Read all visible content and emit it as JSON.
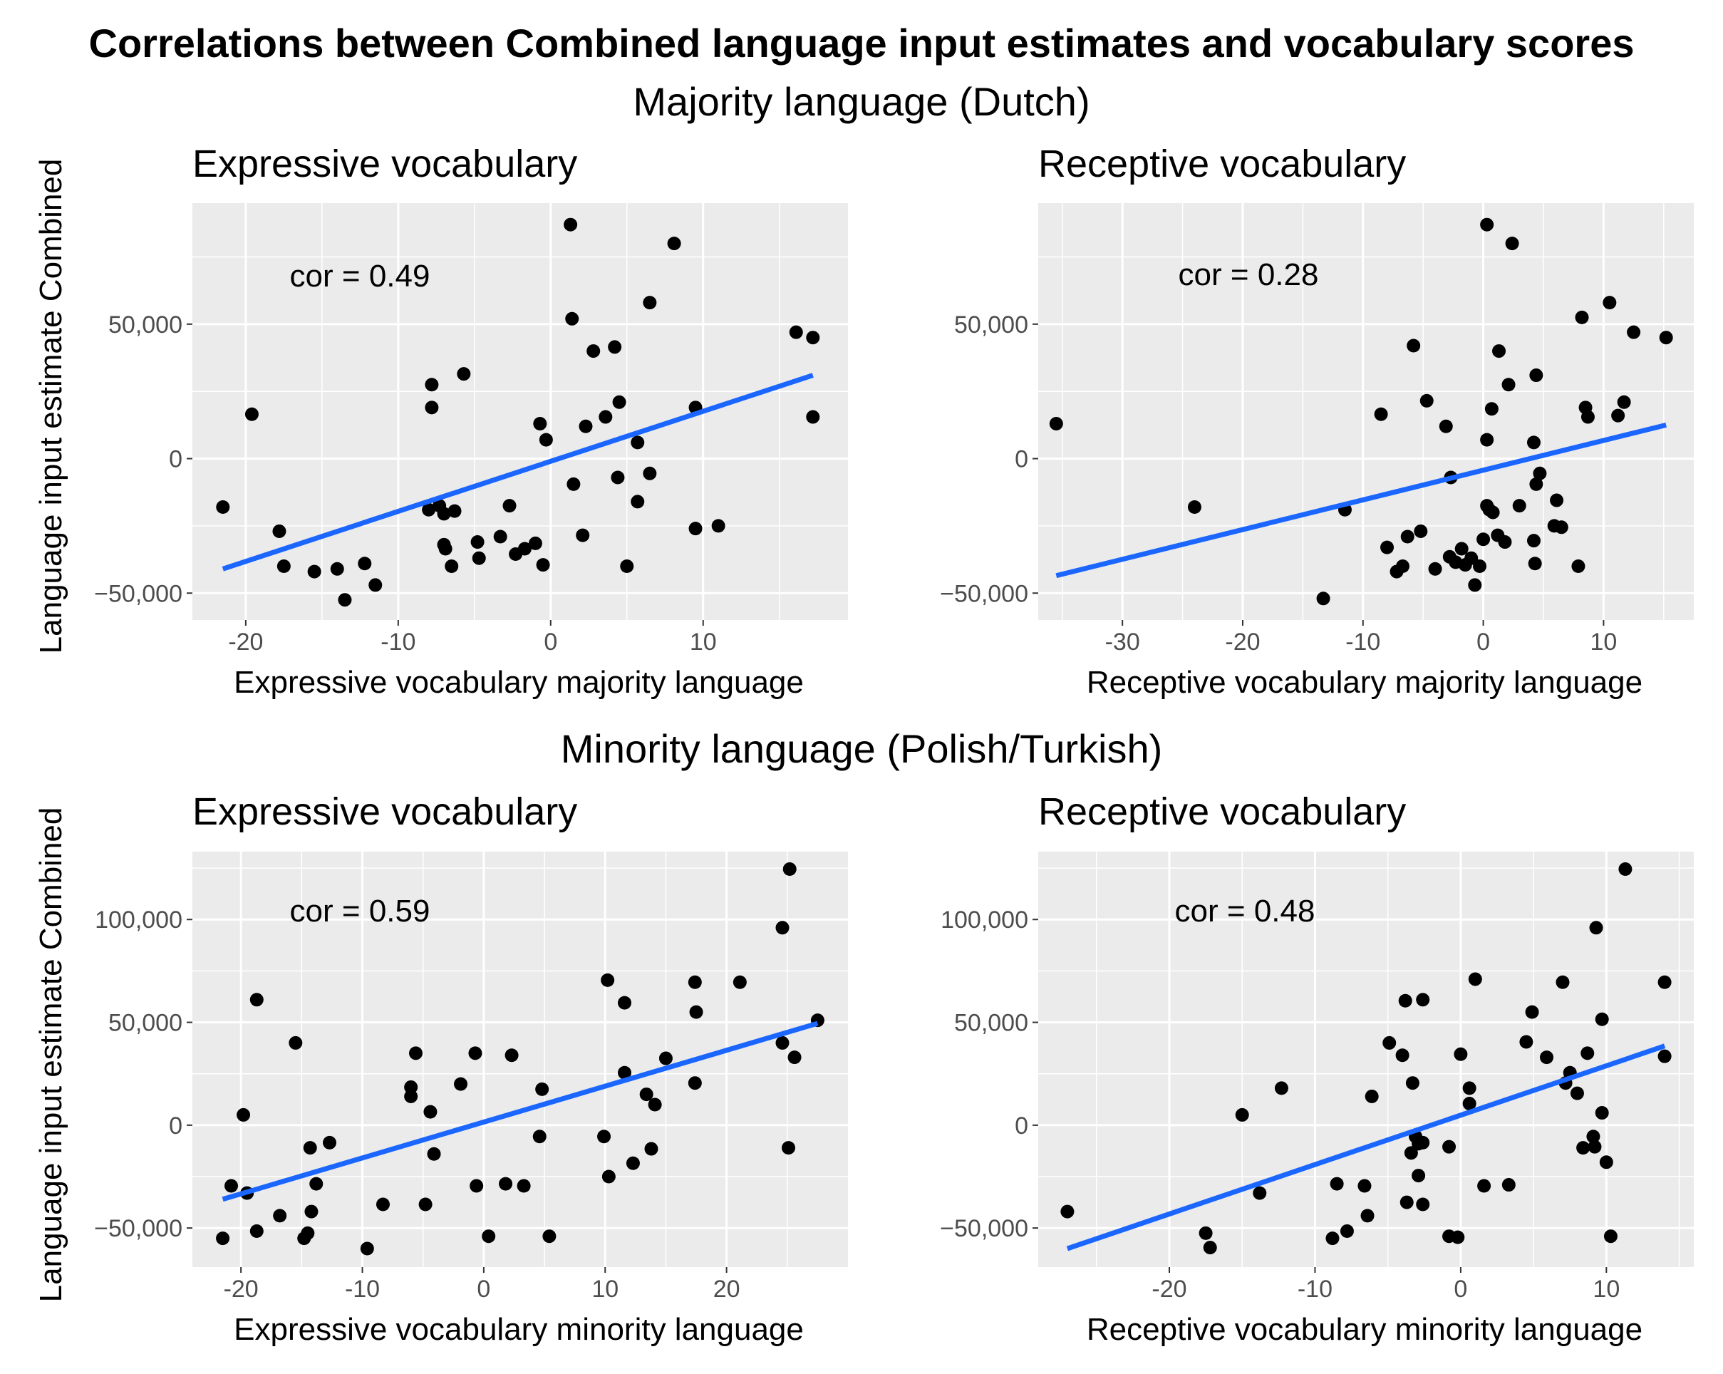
{
  "title": "Correlations between Combined language input estimates and vocabulary scores",
  "sections": [
    {
      "label": "Majority language (Dutch)"
    },
    {
      "label": "Minority language (Polish/Turkish)"
    }
  ],
  "colors": {
    "panel_bg": "#ebebeb",
    "grid": "#ffffff",
    "point": "#000000",
    "fit_line": "#1a66ff",
    "tick_text": "#4d4d4d"
  },
  "chart_data": [
    {
      "type": "scatter",
      "title": "Expressive vocabulary",
      "xlabel": "Expressive vocabulary majority language",
      "ylabel": "Language input estimate Combined",
      "annotation": "cor = 0.49",
      "xlim": [
        -23.5,
        19.5
      ],
      "ylim": [
        -60000,
        95000
      ],
      "xticks": [
        -20,
        -10,
        0,
        10
      ],
      "xtick_labels": [
        "-20",
        "-10",
        "0",
        "10"
      ],
      "yticks": [
        -50000,
        0,
        50000
      ],
      "ytick_labels": [
        "−50,000",
        "0",
        "50,000"
      ],
      "fit": {
        "x": [
          -21.5,
          17.2
        ],
        "y": [
          -41000,
          31000
        ]
      },
      "points": [
        [
          -21.5,
          -18000
        ],
        [
          -19.6,
          16500
        ],
        [
          -17.8,
          -27000
        ],
        [
          -17.5,
          -40000
        ],
        [
          -15.5,
          -42000
        ],
        [
          -14,
          -41000
        ],
        [
          -13.5,
          -52500
        ],
        [
          -12.2,
          -39000
        ],
        [
          -11.5,
          -47000
        ],
        [
          -8,
          -19000
        ],
        [
          -7.8,
          27500
        ],
        [
          -7.8,
          19000
        ],
        [
          -7.3,
          -17500
        ],
        [
          -7,
          -20500
        ],
        [
          -7,
          -32000
        ],
        [
          -6.9,
          -33500
        ],
        [
          -6.5,
          -40000
        ],
        [
          -6.3,
          -19500
        ],
        [
          -5.7,
          31500
        ],
        [
          -4.8,
          -31000
        ],
        [
          -4.7,
          -37000
        ],
        [
          -3.3,
          -29000
        ],
        [
          -2.7,
          -17500
        ],
        [
          -2.3,
          -35500
        ],
        [
          -1.7,
          -33500
        ],
        [
          -1,
          -31500
        ],
        [
          -0.7,
          13000
        ],
        [
          -0.5,
          -39500
        ],
        [
          -0.3,
          7000
        ],
        [
          1.3,
          87000
        ],
        [
          1.4,
          52000
        ],
        [
          1.5,
          -9500
        ],
        [
          2.1,
          -28500
        ],
        [
          2.3,
          12000
        ],
        [
          2.8,
          40000
        ],
        [
          3.6,
          15500
        ],
        [
          4.2,
          41500
        ],
        [
          4.4,
          -7000
        ],
        [
          4.5,
          21000
        ],
        [
          5,
          -40000
        ],
        [
          5.7,
          -16000
        ],
        [
          5.7,
          6000
        ],
        [
          6.5,
          58000
        ],
        [
          6.5,
          -5500
        ],
        [
          8.1,
          80000
        ],
        [
          9.5,
          19000
        ],
        [
          9.5,
          -26000
        ],
        [
          11,
          -25000
        ],
        [
          16.1,
          47000
        ],
        [
          17.2,
          45000
        ],
        [
          17.2,
          15500
        ]
      ]
    },
    {
      "type": "scatter",
      "title": "Receptive vocabulary",
      "xlabel": "Receptive vocabulary majority language",
      "ylabel": "",
      "annotation": "cor = 0.28",
      "xlim": [
        -37,
        17.5
      ],
      "ylim": [
        -60000,
        95000
      ],
      "xticks": [
        -30,
        -20,
        -10,
        0,
        10
      ],
      "xtick_labels": [
        "-30",
        "-20",
        "-10",
        "0",
        "10"
      ],
      "yticks": [
        -50000,
        0,
        50000
      ],
      "ytick_labels": [
        "−50,000",
        "0",
        "50,000"
      ],
      "fit": {
        "x": [
          -35.5,
          15.2
        ],
        "y": [
          -43500,
          12500
        ]
      },
      "points": [
        [
          -35.5,
          13000
        ],
        [
          -24,
          -18000
        ],
        [
          -13.3,
          -52000
        ],
        [
          -11.5,
          -19000
        ],
        [
          -8.5,
          16500
        ],
        [
          -8,
          -33000
        ],
        [
          -7.2,
          -42000
        ],
        [
          -6.7,
          -40000
        ],
        [
          -6.3,
          -29000
        ],
        [
          -5.8,
          42000
        ],
        [
          -5.2,
          -27000
        ],
        [
          -4.7,
          21500
        ],
        [
          -4,
          -41000
        ],
        [
          -3.1,
          12000
        ],
        [
          -2.8,
          -36500
        ],
        [
          -2.7,
          -7000
        ],
        [
          -2.3,
          -38500
        ],
        [
          -1.8,
          -33500
        ],
        [
          -1.5,
          -39500
        ],
        [
          -1,
          -37000
        ],
        [
          -0.7,
          -47000
        ],
        [
          -0.3,
          -40000
        ],
        [
          0,
          -30000
        ],
        [
          0.3,
          87000
        ],
        [
          0.3,
          -17500
        ],
        [
          0.3,
          7000
        ],
        [
          0.5,
          -19000
        ],
        [
          0.7,
          18500
        ],
        [
          0.8,
          -20000
        ],
        [
          1.2,
          -28500
        ],
        [
          1.3,
          40000
        ],
        [
          1.8,
          -31000
        ],
        [
          2.1,
          27500
        ],
        [
          2.4,
          80000
        ],
        [
          3,
          -17500
        ],
        [
          4.2,
          6000
        ],
        [
          4.2,
          -30500
        ],
        [
          4.3,
          -39000
        ],
        [
          4.4,
          31000
        ],
        [
          4.4,
          -9500
        ],
        [
          4.7,
          -5500
        ],
        [
          5.9,
          -25000
        ],
        [
          6.1,
          -15500
        ],
        [
          6.5,
          -25500
        ],
        [
          7.9,
          -40000
        ],
        [
          8.2,
          52500
        ],
        [
          8.5,
          19000
        ],
        [
          8.7,
          15500
        ],
        [
          10.5,
          58000
        ],
        [
          11.2,
          16000
        ],
        [
          11.7,
          21000
        ],
        [
          12.5,
          47000
        ],
        [
          15.2,
          45000
        ]
      ]
    },
    {
      "type": "scatter",
      "title": "Expressive vocabulary",
      "xlabel": "Expressive vocabulary minority language",
      "ylabel": "Language input estimate Combined",
      "annotation": "cor = 0.59",
      "xlim": [
        -24,
        30
      ],
      "ylim": [
        -69000,
        133000
      ],
      "xticks": [
        -20,
        -10,
        0,
        10,
        20
      ],
      "xtick_labels": [
        "-20",
        "-10",
        "0",
        "10",
        "20"
      ],
      "yticks": [
        -50000,
        0,
        50000,
        100000
      ],
      "ytick_labels": [
        "−50,000",
        "0",
        "50,000",
        "100,000"
      ],
      "fit": {
        "x": [
          -21.5,
          27.5
        ],
        "y": [
          -36000,
          49500
        ]
      },
      "points": [
        [
          -21.5,
          -55000
        ],
        [
          -20.8,
          -29500
        ],
        [
          -19.8,
          5000
        ],
        [
          -19.5,
          -33000
        ],
        [
          -18.7,
          61000
        ],
        [
          -18.7,
          -51500
        ],
        [
          -16.8,
          -44000
        ],
        [
          -15.5,
          40000
        ],
        [
          -14.8,
          -55000
        ],
        [
          -14.5,
          -52500
        ],
        [
          -14.3,
          -11000
        ],
        [
          -14.2,
          -42000
        ],
        [
          -13.8,
          -28500
        ],
        [
          -12.7,
          -8500
        ],
        [
          -9.6,
          -60000
        ],
        [
          -8.3,
          -38500
        ],
        [
          -6,
          14000
        ],
        [
          -6,
          18500
        ],
        [
          -5.6,
          35000
        ],
        [
          -4.8,
          -38500
        ],
        [
          -4.4,
          6500
        ],
        [
          -4.1,
          -14000
        ],
        [
          -1.9,
          20000
        ],
        [
          -0.7,
          35000
        ],
        [
          -0.6,
          -29500
        ],
        [
          0.4,
          -54000
        ],
        [
          1.8,
          -28500
        ],
        [
          2.3,
          34000
        ],
        [
          3.3,
          -29500
        ],
        [
          4.6,
          -5500
        ],
        [
          4.8,
          17500
        ],
        [
          5.4,
          -54000
        ],
        [
          9.9,
          -5500
        ],
        [
          10.2,
          70500
        ],
        [
          10.3,
          -25000
        ],
        [
          11.6,
          59500
        ],
        [
          11.6,
          25500
        ],
        [
          12.3,
          -18500
        ],
        [
          13.4,
          15000
        ],
        [
          13.8,
          -11500
        ],
        [
          14.1,
          10000
        ],
        [
          15,
          32500
        ],
        [
          17.4,
          69500
        ],
        [
          17.4,
          20500
        ],
        [
          17.5,
          55000
        ],
        [
          21.1,
          69500
        ],
        [
          24.6,
          96000
        ],
        [
          24.6,
          40000
        ],
        [
          25.1,
          -11000
        ],
        [
          25.2,
          124500
        ],
        [
          25.6,
          33000
        ],
        [
          27.5,
          51000
        ]
      ]
    },
    {
      "type": "scatter",
      "title": "Receptive vocabulary",
      "xlabel": "Receptive vocabulary minority language",
      "ylabel": "",
      "annotation": "cor = 0.48",
      "xlim": [
        -29,
        16
      ],
      "ylim": [
        -69000,
        133000
      ],
      "xticks": [
        -20,
        -10,
        0,
        10
      ],
      "xtick_labels": [
        "-20",
        "-10",
        "0",
        "10"
      ],
      "yticks": [
        -50000,
        0,
        50000,
        100000
      ],
      "ytick_labels": [
        "−50,000",
        "0",
        "50,000",
        "100,000"
      ],
      "fit": {
        "x": [
          -27,
          14
        ],
        "y": [
          -60000,
          38500
        ]
      },
      "points": [
        [
          -27,
          -42000
        ],
        [
          -17.5,
          -52500
        ],
        [
          -17.2,
          -59500
        ],
        [
          -15,
          5000
        ],
        [
          -13.8,
          -33000
        ],
        [
          -12.3,
          18000
        ],
        [
          -8.8,
          -55000
        ],
        [
          -8.5,
          -28500
        ],
        [
          -7.8,
          -51500
        ],
        [
          -6.6,
          -29500
        ],
        [
          -6.4,
          -44000
        ],
        [
          -6.1,
          14000
        ],
        [
          -4.9,
          40000
        ],
        [
          -4,
          34000
        ],
        [
          -3.8,
          60500
        ],
        [
          -3.7,
          -37500
        ],
        [
          -3.4,
          -13500
        ],
        [
          -3.3,
          20500
        ],
        [
          -3.1,
          -5500
        ],
        [
          -2.9,
          -24500
        ],
        [
          -2.9,
          -9000
        ],
        [
          -2.6,
          61000
        ],
        [
          -2.6,
          -38500
        ],
        [
          -2.6,
          -8500
        ],
        [
          -0.8,
          -10500
        ],
        [
          -0.8,
          -54000
        ],
        [
          -0.2,
          -54500
        ],
        [
          0,
          34500
        ],
        [
          0.6,
          18000
        ],
        [
          0.6,
          10500
        ],
        [
          1,
          71000
        ],
        [
          1.6,
          -29500
        ],
        [
          3.3,
          -29000
        ],
        [
          4.5,
          40500
        ],
        [
          4.9,
          55000
        ],
        [
          5.9,
          33000
        ],
        [
          7,
          69500
        ],
        [
          7.2,
          20500
        ],
        [
          7.5,
          25500
        ],
        [
          8,
          15500
        ],
        [
          8.4,
          -11000
        ],
        [
          8.7,
          35000
        ],
        [
          9.1,
          -5500
        ],
        [
          9.2,
          -10500
        ],
        [
          9.3,
          96000
        ],
        [
          9.7,
          6000
        ],
        [
          9.7,
          51500
        ],
        [
          10,
          -18000
        ],
        [
          10.3,
          -54000
        ],
        [
          11.3,
          124500
        ],
        [
          14,
          69500
        ],
        [
          14,
          33500
        ]
      ]
    }
  ]
}
